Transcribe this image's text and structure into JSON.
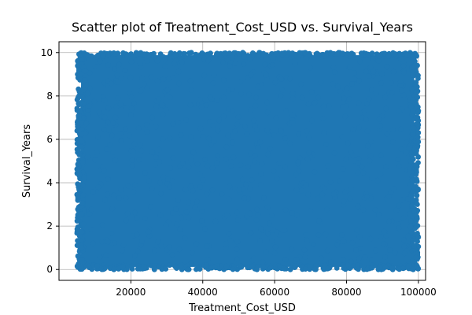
{
  "chart_data": {
    "type": "scatter",
    "title": "Scatter plot of Treatment_Cost_USD vs. Survival_Years",
    "xlabel": "Treatment_Cost_USD",
    "ylabel": "Survival_Years",
    "xlim": [
      0,
      102000
    ],
    "ylim": [
      -0.5,
      10.5
    ],
    "xticks": [
      20000,
      40000,
      60000,
      80000,
      100000
    ],
    "xtick_labels": [
      "20000",
      "40000",
      "60000",
      "80000",
      "100000"
    ],
    "yticks": [
      0,
      2,
      4,
      6,
      8,
      10
    ],
    "ytick_labels": [
      "0",
      "2",
      "4",
      "6",
      "8",
      "10"
    ],
    "grid": true,
    "legend": "none",
    "series": [
      {
        "color": "#1f77b4",
        "x_range": [
          5000,
          100000
        ],
        "y_range": [
          0,
          10
        ],
        "distribution": "uniform-dense"
      }
    ],
    "colors": {
      "marker": "#1f77b4",
      "grid": "#b0b0b0",
      "axis": "#000000"
    }
  }
}
